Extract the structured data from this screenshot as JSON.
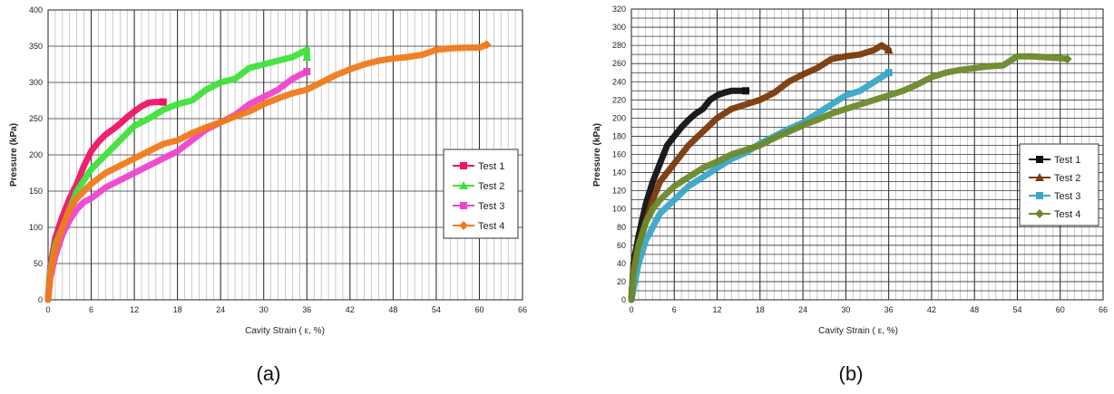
{
  "figure": {
    "panels": [
      "(a)",
      "(b)"
    ]
  },
  "chart_data": [
    {
      "type": "line",
      "panel_label": "(a)",
      "xlabel": "Cavity Strain ( ε, %)",
      "ylabel": "Pressure (kPa)",
      "xlim": [
        0,
        66
      ],
      "ylim": [
        0,
        400
      ],
      "xticks": [
        0,
        6,
        12,
        18,
        24,
        30,
        36,
        42,
        48,
        54,
        60,
        66
      ],
      "yticks": [
        0,
        50,
        100,
        150,
        200,
        250,
        300,
        350,
        400
      ],
      "grid": true,
      "legend_position": "right",
      "series": [
        {
          "name": "Test 1",
          "color": "#ee1566",
          "marker": "square",
          "points": [
            [
              0,
              0
            ],
            [
              0.3,
              45
            ],
            [
              1,
              85
            ],
            [
              2,
              115
            ],
            [
              3,
              140
            ],
            [
              4,
              160
            ],
            [
              5,
              185
            ],
            [
              6,
              205
            ],
            [
              7,
              218
            ],
            [
              8,
              228
            ],
            [
              9,
              235
            ],
            [
              10,
              243
            ],
            [
              11,
              252
            ],
            [
              12,
              260
            ],
            [
              13,
              267
            ],
            [
              14,
              272
            ],
            [
              15,
              273
            ],
            [
              16,
              273
            ]
          ]
        },
        {
          "name": "Test 2",
          "color": "#3ee23b",
          "marker": "triangle",
          "points": [
            [
              0,
              0
            ],
            [
              0.3,
              40
            ],
            [
              1,
              75
            ],
            [
              2,
              100
            ],
            [
              3,
              125
            ],
            [
              4,
              150
            ],
            [
              5,
              165
            ],
            [
              6,
              180
            ],
            [
              8,
              200
            ],
            [
              10,
              220
            ],
            [
              12,
              240
            ],
            [
              14,
              250
            ],
            [
              16,
              262
            ],
            [
              18,
              270
            ],
            [
              20,
              275
            ],
            [
              22,
              290
            ],
            [
              24,
              300
            ],
            [
              26,
              305
            ],
            [
              28,
              320
            ],
            [
              30,
              325
            ],
            [
              32,
              330
            ],
            [
              34,
              335
            ],
            [
              35,
              340
            ],
            [
              36,
              345
            ],
            [
              36,
              335
            ]
          ]
        },
        {
          "name": "Test 3",
          "color": "#ee44cc",
          "marker": "square",
          "points": [
            [
              0,
              0
            ],
            [
              0.3,
              30
            ],
            [
              1,
              60
            ],
            [
              2,
              90
            ],
            [
              3,
              110
            ],
            [
              4,
              125
            ],
            [
              5,
              135
            ],
            [
              6,
              140
            ],
            [
              8,
              155
            ],
            [
              10,
              165
            ],
            [
              12,
              175
            ],
            [
              14,
              185
            ],
            [
              16,
              195
            ],
            [
              18,
              205
            ],
            [
              20,
              220
            ],
            [
              22,
              235
            ],
            [
              24,
              245
            ],
            [
              26,
              255
            ],
            [
              28,
              270
            ],
            [
              30,
              280
            ],
            [
              32,
              290
            ],
            [
              34,
              305
            ],
            [
              35,
              310
            ],
            [
              36,
              315
            ]
          ]
        },
        {
          "name": "Test 4",
          "color": "#f07a1a",
          "marker": "diamond",
          "points": [
            [
              0,
              0
            ],
            [
              0.3,
              35
            ],
            [
              1,
              70
            ],
            [
              2,
              100
            ],
            [
              3,
              125
            ],
            [
              4,
              140
            ],
            [
              5,
              150
            ],
            [
              6,
              160
            ],
            [
              8,
              175
            ],
            [
              10,
              185
            ],
            [
              12,
              195
            ],
            [
              14,
              205
            ],
            [
              16,
              215
            ],
            [
              18,
              220
            ],
            [
              20,
              230
            ],
            [
              22,
              238
            ],
            [
              24,
              245
            ],
            [
              26,
              253
            ],
            [
              28,
              260
            ],
            [
              30,
              270
            ],
            [
              32,
              278
            ],
            [
              34,
              285
            ],
            [
              36,
              290
            ],
            [
              38,
              300
            ],
            [
              40,
              310
            ],
            [
              42,
              318
            ],
            [
              44,
              325
            ],
            [
              46,
              330
            ],
            [
              48,
              333
            ],
            [
              50,
              335
            ],
            [
              52,
              338
            ],
            [
              54,
              345
            ],
            [
              56,
              347
            ],
            [
              58,
              348
            ],
            [
              60,
              348
            ],
            [
              61,
              352
            ]
          ]
        }
      ]
    },
    {
      "type": "line",
      "panel_label": "(b)",
      "xlabel": "Cavity Strain ( ε, %)",
      "ylabel": "Pressure  (kPa)",
      "xlim": [
        0,
        66
      ],
      "ylim": [
        0,
        320
      ],
      "xticks": [
        0,
        6,
        12,
        18,
        24,
        30,
        36,
        42,
        48,
        54,
        60,
        66
      ],
      "yticks": [
        0,
        10,
        20,
        30,
        40,
        50,
        60,
        70,
        80,
        90,
        100,
        110,
        120,
        130,
        140,
        150,
        160,
        170,
        180,
        190,
        200,
        210,
        220,
        230,
        240,
        250,
        260,
        270,
        280,
        290,
        300,
        310,
        320
      ],
      "ytick_labels": [
        "0",
        "20",
        "40",
        "60",
        "80",
        "100",
        "120",
        "140",
        "160",
        "180",
        "200",
        "220",
        "240",
        "260",
        "280",
        "300",
        "320"
      ],
      "grid": true,
      "legend_position": "right",
      "series": [
        {
          "name": "Test 1",
          "color": "#111111",
          "marker": "square",
          "points": [
            [
              0,
              0
            ],
            [
              0.3,
              40
            ],
            [
              1,
              70
            ],
            [
              2,
              105
            ],
            [
              3,
              130
            ],
            [
              4,
              150
            ],
            [
              5,
              170
            ],
            [
              6,
              180
            ],
            [
              7,
              190
            ],
            [
              8,
              198
            ],
            [
              9,
              205
            ],
            [
              10,
              210
            ],
            [
              11,
              220
            ],
            [
              12,
              225
            ],
            [
              13,
              228
            ],
            [
              14,
              230
            ],
            [
              15,
              230
            ],
            [
              16,
              230
            ]
          ]
        },
        {
          "name": "Test 2",
          "color": "#7a3a0a",
          "marker": "triangle",
          "points": [
            [
              0,
              0
            ],
            [
              0.3,
              35
            ],
            [
              1,
              60
            ],
            [
              2,
              85
            ],
            [
              3,
              110
            ],
            [
              4,
              130
            ],
            [
              6,
              150
            ],
            [
              8,
              170
            ],
            [
              10,
              185
            ],
            [
              12,
              200
            ],
            [
              14,
              210
            ],
            [
              16,
              215
            ],
            [
              18,
              220
            ],
            [
              20,
              228
            ],
            [
              22,
              240
            ],
            [
              24,
              248
            ],
            [
              26,
              255
            ],
            [
              28,
              265
            ],
            [
              30,
              268
            ],
            [
              32,
              270
            ],
            [
              34,
              275
            ],
            [
              35,
              280
            ],
            [
              36,
              275
            ]
          ]
        },
        {
          "name": "Test 3",
          "color": "#3aa6c8",
          "marker": "square",
          "points": [
            [
              0,
              0
            ],
            [
              0.5,
              20
            ],
            [
              1,
              40
            ],
            [
              2,
              65
            ],
            [
              3,
              80
            ],
            [
              4,
              95
            ],
            [
              6,
              110
            ],
            [
              8,
              125
            ],
            [
              10,
              135
            ],
            [
              12,
              145
            ],
            [
              14,
              155
            ],
            [
              16,
              162
            ],
            [
              18,
              172
            ],
            [
              20,
              180
            ],
            [
              22,
              188
            ],
            [
              24,
              195
            ],
            [
              26,
              205
            ],
            [
              28,
              215
            ],
            [
              30,
              225
            ],
            [
              32,
              230
            ],
            [
              34,
              240
            ],
            [
              35,
              245
            ],
            [
              36,
              250
            ]
          ]
        },
        {
          "name": "Test 4",
          "color": "#6a8a2a",
          "marker": "diamond",
          "points": [
            [
              0,
              0
            ],
            [
              0.3,
              30
            ],
            [
              1,
              60
            ],
            [
              2,
              85
            ],
            [
              3,
              100
            ],
            [
              4,
              110
            ],
            [
              6,
              125
            ],
            [
              8,
              135
            ],
            [
              10,
              145
            ],
            [
              12,
              152
            ],
            [
              14,
              160
            ],
            [
              16,
              165
            ],
            [
              18,
              170
            ],
            [
              20,
              178
            ],
            [
              22,
              185
            ],
            [
              24,
              192
            ],
            [
              26,
              198
            ],
            [
              28,
              205
            ],
            [
              30,
              210
            ],
            [
              32,
              215
            ],
            [
              34,
              220
            ],
            [
              36,
              225
            ],
            [
              38,
              230
            ],
            [
              40,
              237
            ],
            [
              42,
              245
            ],
            [
              44,
              250
            ],
            [
              46,
              253
            ],
            [
              48,
              255
            ],
            [
              50,
              257
            ],
            [
              52,
              258
            ],
            [
              54,
              268
            ],
            [
              56,
              268
            ],
            [
              58,
              267
            ],
            [
              60,
              266
            ],
            [
              61,
              265
            ]
          ]
        }
      ]
    }
  ]
}
